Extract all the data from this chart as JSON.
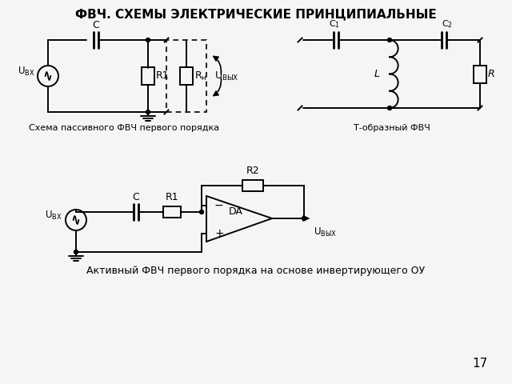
{
  "title": "ФВЧ. СХЕМЫ ЭЛЕКТРИЧЕСКИЕ ПРИНЦИПИАЛЬНЫЕ",
  "title_fontsize": 11,
  "title_fontweight": "bold",
  "bg_color": "#f5f5f5",
  "line_color": "#000000",
  "label1": "Схема пассивного ФВЧ первого порядка",
  "label2": "Т-образный ФВЧ",
  "label3": "Активный ФВЧ первого порядка на основе инвертирующего ОУ",
  "page_number": "17"
}
